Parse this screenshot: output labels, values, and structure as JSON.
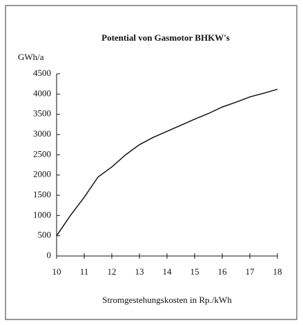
{
  "chart_data": {
    "type": "line",
    "title": "Potential von Gasmotor BHKW's",
    "y_label": "GWh/a",
    "x_label": "Stromgestehungskosten in Rp./kWh",
    "x": [
      10,
      10.5,
      11,
      11.5,
      12,
      12.5,
      13,
      13.5,
      14,
      14.5,
      15,
      15.5,
      16,
      16.5,
      17,
      17.5,
      18
    ],
    "values": [
      500,
      1000,
      1450,
      1950,
      2200,
      2500,
      2750,
      2930,
      3080,
      3230,
      3380,
      3520,
      3680,
      3800,
      3930,
      4020,
      4120
    ],
    "color": "#111111",
    "xlim": [
      10,
      18
    ],
    "xticks": [
      10,
      11,
      12,
      13,
      14,
      15,
      16,
      17,
      18
    ],
    "ylim": [
      0,
      4500
    ],
    "yticks": [
      0,
      500,
      1000,
      1500,
      2000,
      2500,
      3000,
      3500,
      4000,
      4500
    ]
  }
}
